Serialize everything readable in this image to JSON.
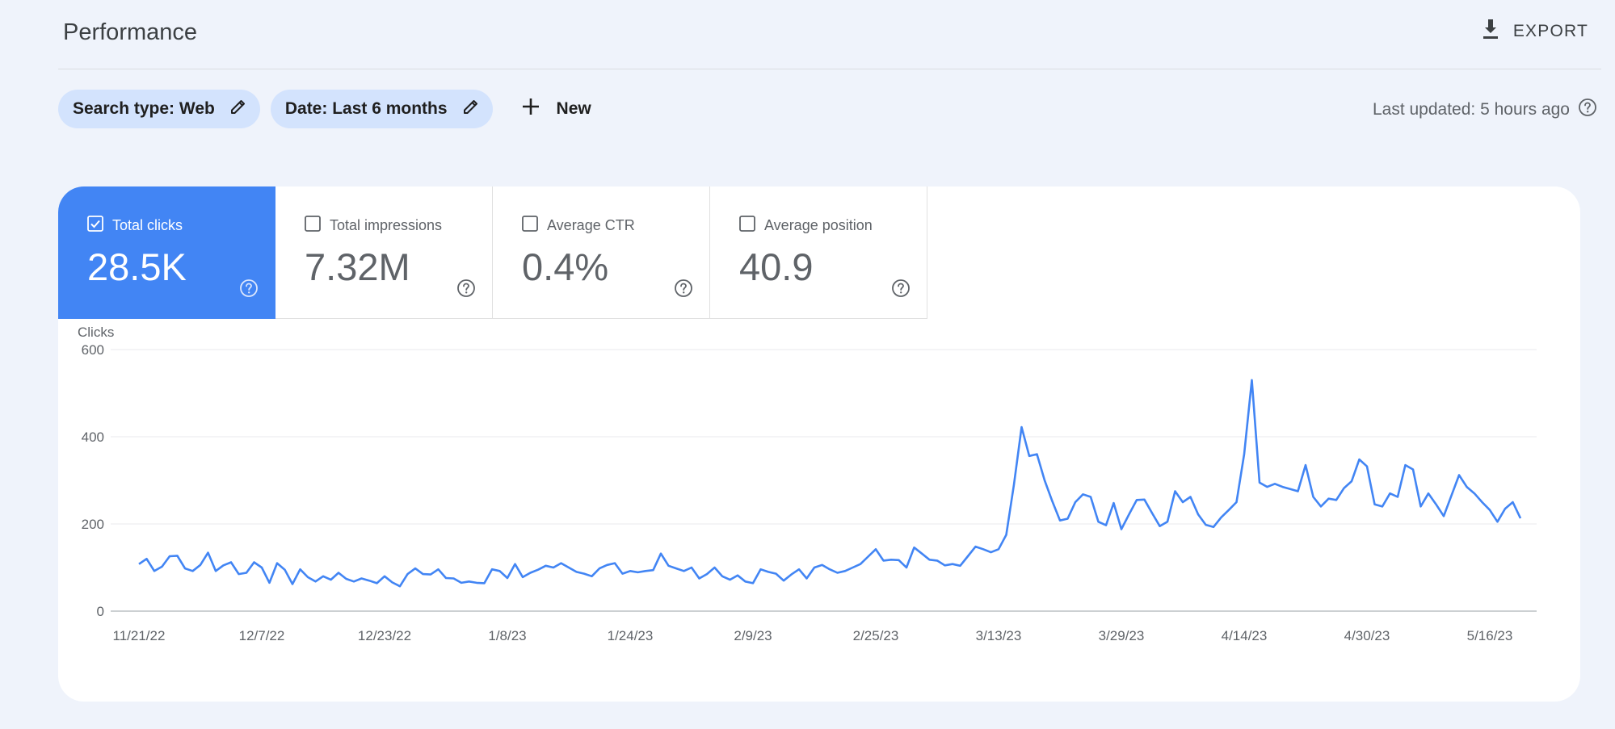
{
  "header": {
    "title": "Performance",
    "export_label": "EXPORT"
  },
  "filters": {
    "chips": [
      {
        "label": "Search type: Web"
      },
      {
        "label": "Date: Last 6 months"
      }
    ],
    "new_label": "New",
    "last_updated": "Last updated: 5 hours ago"
  },
  "metrics": [
    {
      "label": "Total clicks",
      "value": "28.5K",
      "checked": true
    },
    {
      "label": "Total impressions",
      "value": "7.32M",
      "checked": false
    },
    {
      "label": "Average CTR",
      "value": "0.4%",
      "checked": false
    },
    {
      "label": "Average position",
      "value": "40.9",
      "checked": false
    }
  ],
  "colors": {
    "accent": "#4285f4",
    "chip_bg": "#d3e3fd",
    "page_bg": "#eff3fb"
  },
  "chart_data": {
    "type": "line",
    "ylabel": "Clicks",
    "ylim": [
      0,
      600
    ],
    "y_ticks": [
      0,
      200,
      400,
      600
    ],
    "x_tick_labels": [
      "11/21/22",
      "12/7/22",
      "12/23/22",
      "1/8/23",
      "1/24/23",
      "2/9/23",
      "2/25/23",
      "3/13/23",
      "3/29/23",
      "4/14/23",
      "4/30/23",
      "5/16/23"
    ],
    "x_tick_days": [
      0,
      16,
      32,
      48,
      64,
      80,
      96,
      112,
      128,
      144,
      160,
      176
    ],
    "grid": true,
    "series": [
      {
        "color": "#4285f4",
        "values": [
          108,
          120,
          92,
          102,
          126,
          127,
          98,
          92,
          106,
          134,
          92,
          105,
          112,
          85,
          88,
          112,
          100,
          65,
          110,
          95,
          62,
          96,
          78,
          68,
          80,
          72,
          88,
          74,
          68,
          75,
          70,
          64,
          80,
          66,
          57,
          85,
          98,
          85,
          84,
          96,
          76,
          75,
          65,
          68,
          65,
          64,
          96,
          92,
          76,
          108,
          78,
          88,
          95,
          104,
          100,
          110,
          100,
          90,
          86,
          80,
          98,
          106,
          110,
          86,
          92,
          89,
          92,
          94,
          132,
          104,
          98,
          92,
          100,
          75,
          85,
          100,
          80,
          72,
          82,
          68,
          64,
          96,
          90,
          86,
          70,
          84,
          96,
          75,
          100,
          106,
          96,
          88,
          92,
          100,
          108,
          125,
          142,
          116,
          118,
          117,
          100,
          146,
          132,
          118,
          116,
          105,
          108,
          104,
          126,
          148,
          142,
          135,
          142,
          175,
          290,
          422,
          356,
          360,
          300,
          252,
          208,
          212,
          250,
          268,
          262,
          205,
          197,
          248,
          188,
          222,
          255,
          256,
          225,
          195,
          205,
          275,
          250,
          262,
          222,
          198,
          193,
          215,
          232,
          250,
          360,
          530,
          295,
          285,
          292,
          285,
          280,
          275,
          335,
          262,
          240,
          258,
          255,
          282,
          298,
          348,
          332,
          245,
          240,
          270,
          262,
          335,
          325,
          240,
          270,
          245,
          218,
          265,
          312,
          285,
          270,
          250,
          232,
          205,
          235,
          250,
          213
        ]
      }
    ]
  }
}
